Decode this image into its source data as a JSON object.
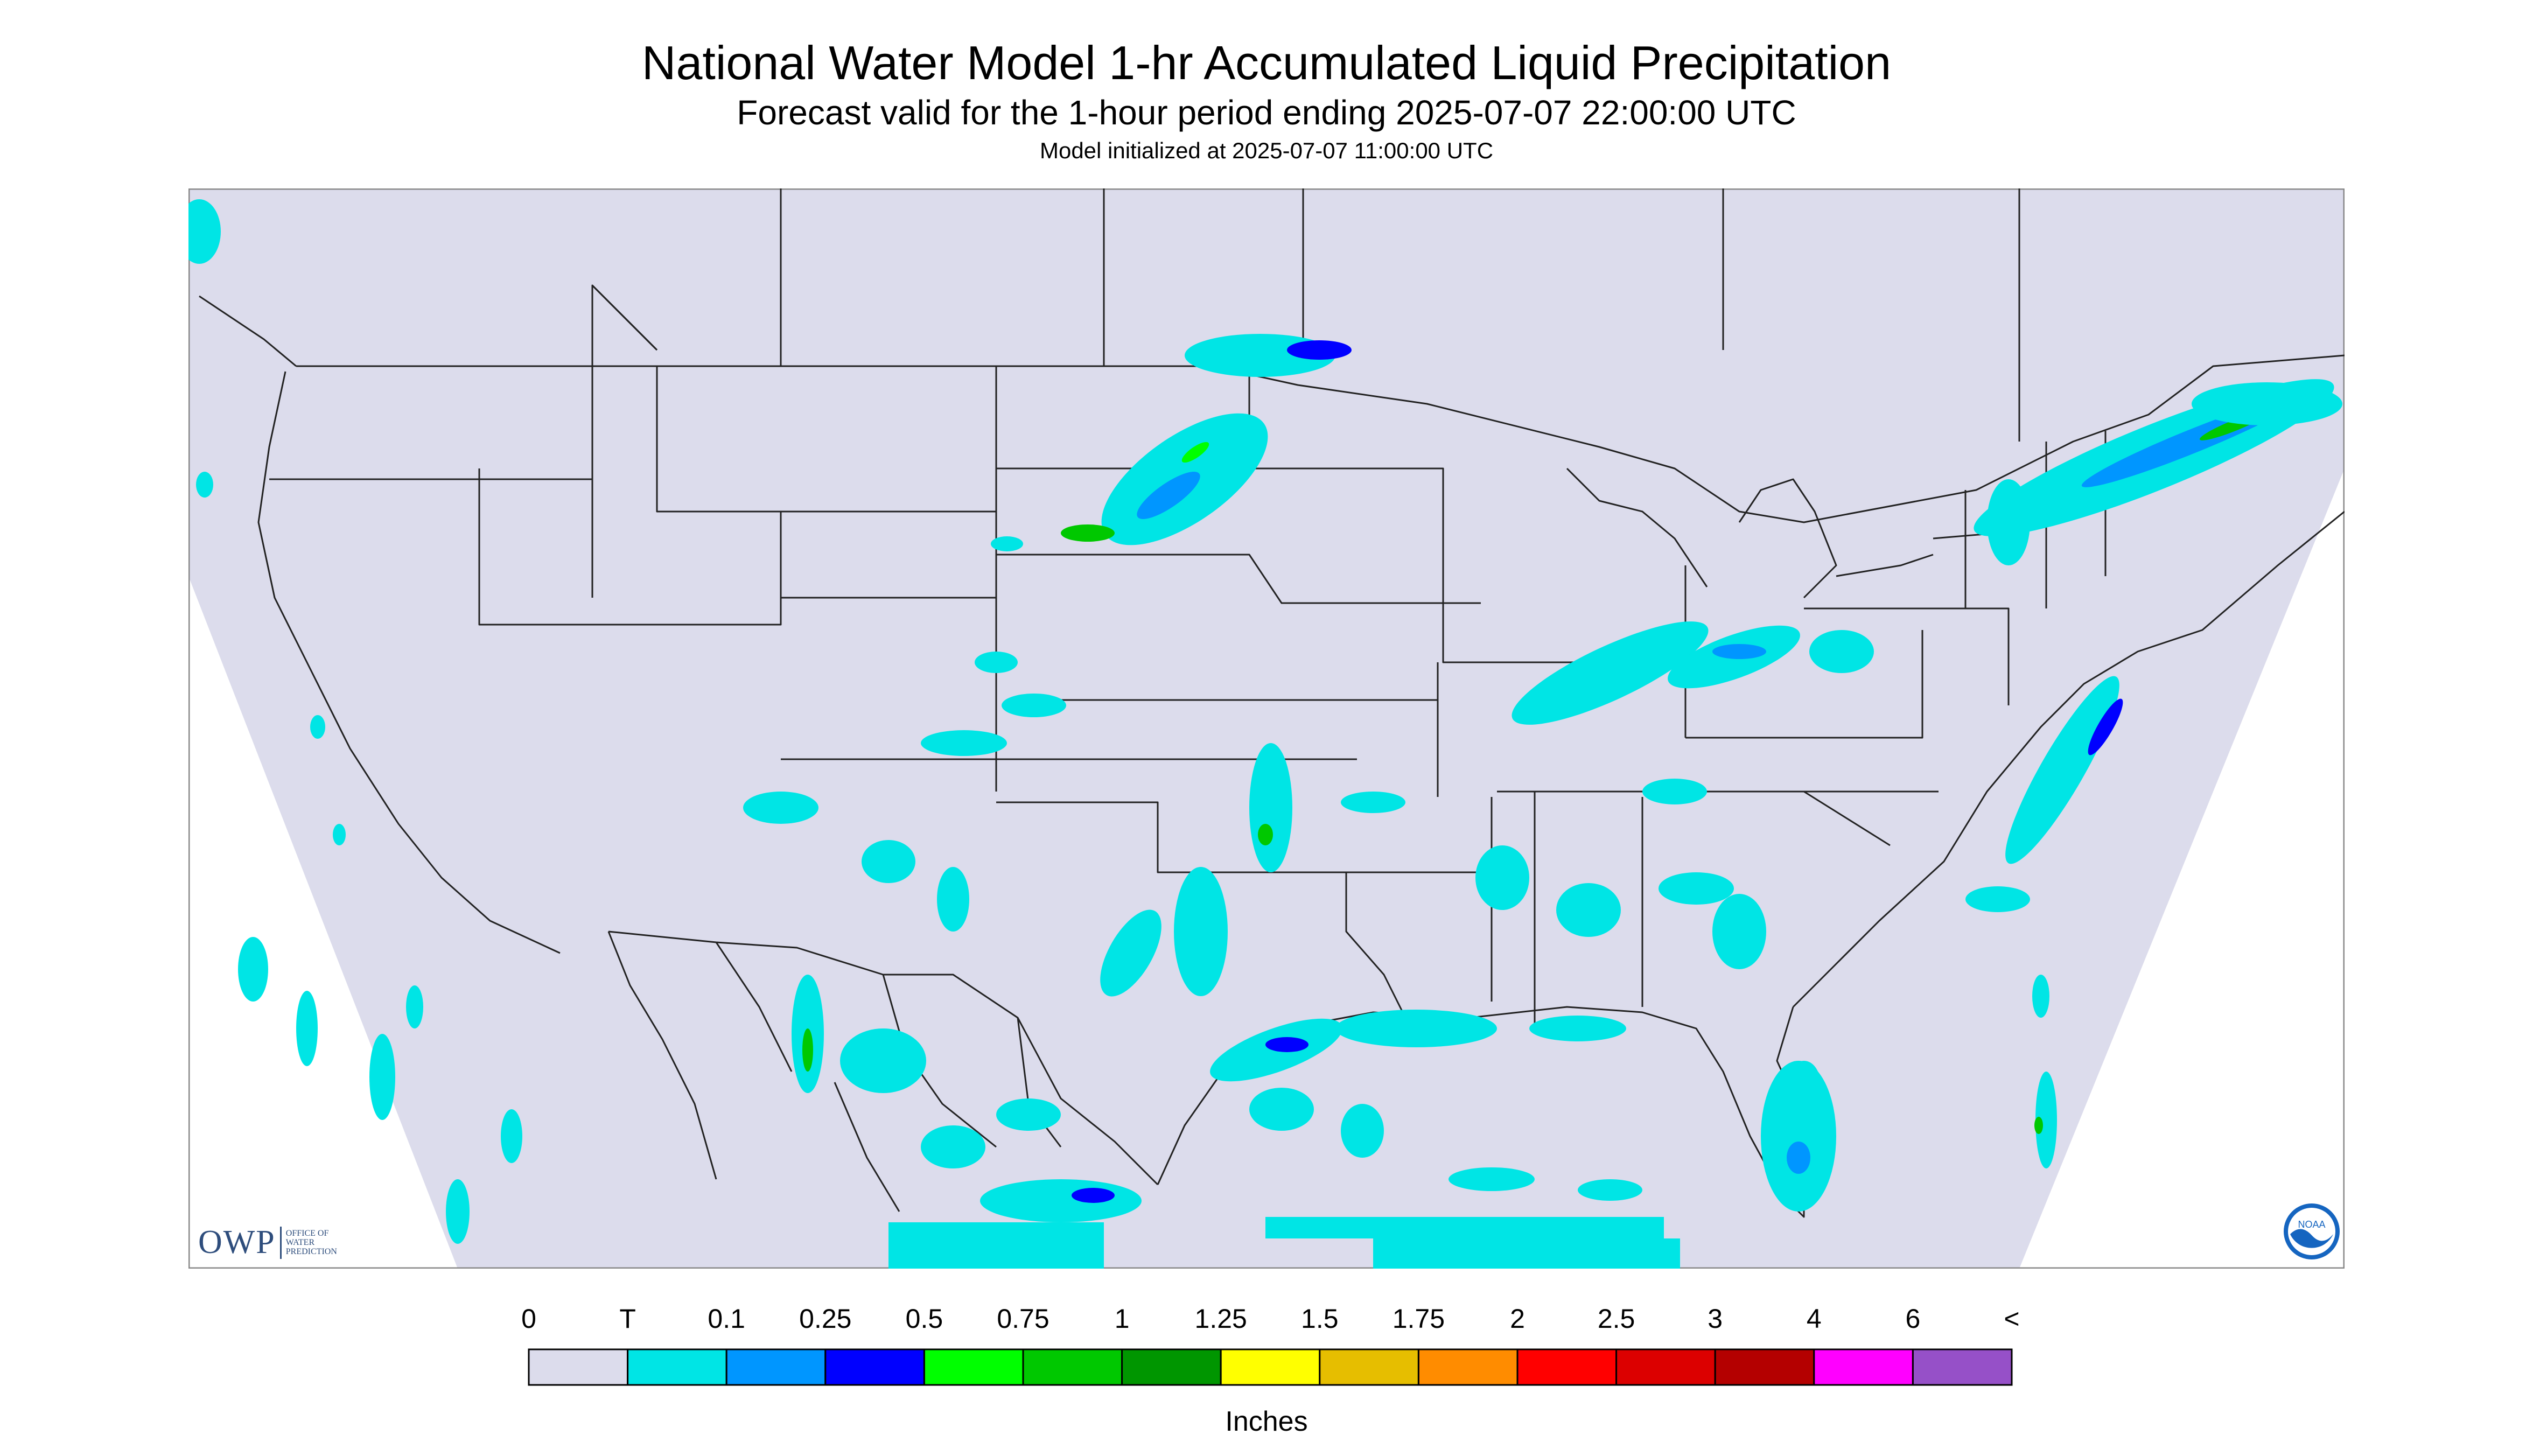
{
  "header": {
    "title": "National Water Model 1-hr Accumulated Liquid Precipitation",
    "subtitle": "Forecast valid for the 1-hour period ending 2025-07-07 22:00:00 UTC",
    "init": "Model initialized at 2025-07-07 11:00:00 UTC"
  },
  "colors": {
    "background": "#dcdcec",
    "frame": "#888888",
    "borders": "#222222"
  },
  "legend": {
    "units": "Inches",
    "tick_labels": [
      "0",
      "T",
      "0.1",
      "0.25",
      "0.5",
      "0.75",
      "1",
      "1.25",
      "1.5",
      "1.75",
      "2",
      "2.5",
      "3",
      "4",
      "6",
      "<"
    ],
    "colors": [
      "#dcdcec",
      "#00e5e5",
      "#0096ff",
      "#0000ff",
      "#00ff00",
      "#00c800",
      "#009600",
      "#ffff00",
      "#e6be00",
      "#ff8c00",
      "#ff0000",
      "#dc0000",
      "#b40000",
      "#ff00ff",
      "#9650c8"
    ]
  },
  "logos": {
    "owp_mark": "OWP",
    "owp_text": [
      "OFFICE OF",
      "WATER",
      "PREDICTION"
    ],
    "noaa_text": "NOAA",
    "noaa_icon": "noaa-logo-icon"
  },
  "precip_areas": [
    {
      "name": "north-dakota-minnesota-band",
      "level": "0.5"
    },
    {
      "name": "northeast-band",
      "level": "0.5"
    },
    {
      "name": "ohio-valley-band",
      "level": "0.25"
    },
    {
      "name": "texas-louisiana-gulf-coast",
      "level": "0.5"
    },
    {
      "name": "florida-peninsula",
      "level": "0.25"
    },
    {
      "name": "mexico-sierra-madre",
      "level": "0.25"
    },
    {
      "name": "atlantic-offshore-band",
      "level": "0.25"
    },
    {
      "name": "pacific-offshore-field",
      "level": "T"
    }
  ]
}
